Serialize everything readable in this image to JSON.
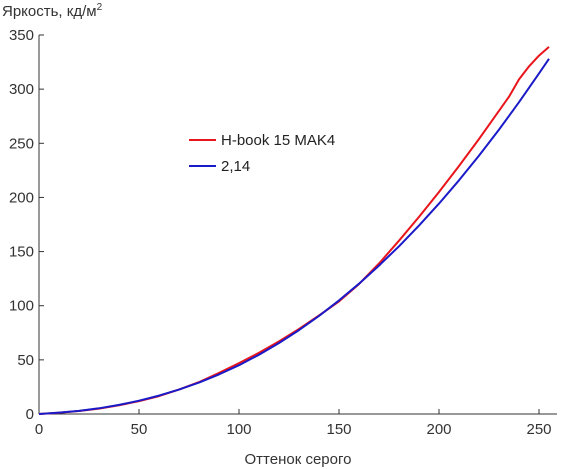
{
  "chart_data": {
    "type": "line",
    "title": "",
    "ylabel": "Яркость, кд/м",
    "ylabel_sup": "2",
    "xlabel": "Оттенок серого",
    "xlim": [
      0,
      255
    ],
    "ylim": [
      0,
      350
    ],
    "xticks": [
      0,
      50,
      100,
      150,
      200,
      250
    ],
    "yticks": [
      0,
      50,
      100,
      150,
      200,
      250,
      300,
      350
    ],
    "grid": false,
    "legend_position": "center-left",
    "series": [
      {
        "name": "H-book 15 MAK4",
        "color": "#e8151b",
        "x": [
          0,
          10,
          20,
          30,
          40,
          50,
          60,
          70,
          80,
          90,
          100,
          110,
          120,
          130,
          140,
          150,
          160,
          170,
          180,
          190,
          200,
          210,
          220,
          230,
          235,
          240,
          245,
          250,
          255
        ],
        "y": [
          0,
          1.2,
          2.8,
          5.0,
          8.0,
          11.8,
          16.5,
          22.5,
          29.5,
          38,
          47,
          56.5,
          67,
          78.5,
          91,
          104,
          120,
          139,
          160,
          182,
          205,
          229,
          254,
          280,
          293,
          309,
          321,
          331,
          339
        ]
      },
      {
        "name": "2,14",
        "color": "#1a1ac8",
        "x": [
          0,
          10,
          20,
          30,
          40,
          50,
          60,
          70,
          80,
          90,
          100,
          110,
          120,
          130,
          140,
          150,
          160,
          170,
          180,
          190,
          200,
          210,
          220,
          230,
          240,
          250,
          255
        ],
        "y": [
          0,
          1.3,
          2.9,
          5.3,
          8.4,
          12.3,
          17.0,
          22.5,
          29.0,
          36.6,
          45.1,
          54.8,
          65.6,
          77.5,
          90.6,
          104.9,
          120.3,
          137,
          154.9,
          174,
          194.3,
          215.8,
          238.6,
          262.6,
          287.9,
          314.5,
          328
        ]
      }
    ]
  }
}
